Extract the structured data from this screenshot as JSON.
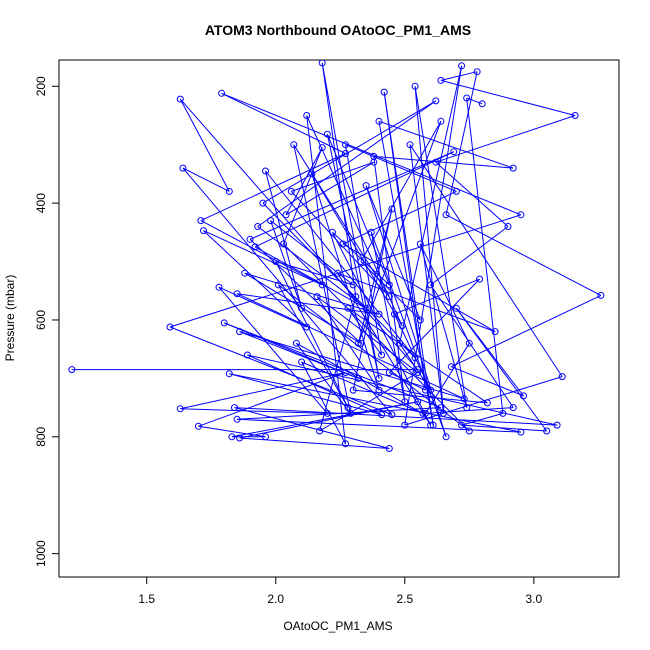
{
  "chart_data": {
    "type": "line",
    "title": "ATOM3 Northbound OAtoOC_PM1_AMS",
    "xlabel": "OAtoOC_PM1_AMS",
    "ylabel": "Pressure (mbar)",
    "xlim": [
      1.16,
      3.33
    ],
    "ylim": [
      1040,
      155
    ],
    "y_reversed": true,
    "xticks": [
      1.5,
      2.0,
      2.5,
      3.0
    ],
    "xtick_labels": [
      "1.5",
      "2.0",
      "2.5",
      "3.0"
    ],
    "yticks": [
      200,
      400,
      600,
      800,
      1000
    ],
    "ytick_labels": [
      "200",
      "400",
      "600",
      "800",
      "1000"
    ],
    "grid": false,
    "legend": "none",
    "marker": "open circle",
    "series": [
      {
        "color": "#0000ff",
        "points": [
          [
            1.21,
            685
          ],
          [
            2.55,
            685
          ],
          [
            1.63,
            222
          ],
          [
            1.82,
            380
          ],
          [
            1.64,
            340
          ],
          [
            2.45,
            762
          ],
          [
            1.59,
            612
          ],
          [
            2.95,
            420
          ],
          [
            1.79,
            212
          ],
          [
            2.27,
            315
          ],
          [
            1.71,
            430
          ],
          [
            2.18,
            540
          ],
          [
            1.72,
            447
          ],
          [
            2.12,
            612
          ],
          [
            1.78,
            544
          ],
          [
            2.2,
            760
          ],
          [
            1.63,
            752
          ],
          [
            2.27,
            690
          ],
          [
            1.7,
            782
          ],
          [
            1.96,
            800
          ],
          [
            1.83,
            800
          ],
          [
            2.55,
            740
          ],
          [
            1.86,
            802
          ],
          [
            2.44,
            820
          ],
          [
            1.84,
            750
          ],
          [
            3.09,
            780
          ],
          [
            1.89,
            660
          ],
          [
            2.41,
            762
          ],
          [
            1.82,
            692
          ],
          [
            2.95,
            792
          ],
          [
            1.85,
            770
          ],
          [
            2.64,
            750
          ],
          [
            1.8,
            605
          ],
          [
            2.32,
            700
          ],
          [
            1.86,
            620
          ],
          [
            2.73,
            735
          ],
          [
            1.85,
            555
          ],
          [
            2.4,
            590
          ],
          [
            1.88,
            520
          ],
          [
            2.33,
            640
          ],
          [
            1.9,
            462
          ],
          [
            2.69,
            312
          ],
          [
            1.92,
            475
          ],
          [
            2.35,
            580
          ],
          [
            1.93,
            440
          ],
          [
            2.62,
            225
          ],
          [
            1.95,
            400
          ],
          [
            2.54,
            665
          ],
          [
            1.96,
            345
          ],
          [
            2.1,
            580
          ],
          [
            1.98,
            430
          ],
          [
            2.3,
            540
          ],
          [
            2.0,
            500
          ],
          [
            2.28,
            750
          ],
          [
            2.01,
            540
          ],
          [
            2.75,
            790
          ],
          [
            2.03,
            470
          ],
          [
            2.18,
            305
          ],
          [
            2.04,
            420
          ],
          [
            2.38,
            330
          ],
          [
            2.06,
            380
          ],
          [
            2.44,
            560
          ],
          [
            2.07,
            300
          ],
          [
            2.29,
            760
          ],
          [
            2.08,
            640
          ],
          [
            2.57,
            760
          ],
          [
            2.1,
            672
          ],
          [
            2.27,
            812
          ],
          [
            2.12,
            250
          ],
          [
            2.49,
            610
          ],
          [
            2.14,
            350
          ],
          [
            2.4,
            720
          ],
          [
            2.16,
            560
          ],
          [
            2.55,
            690
          ],
          [
            2.17,
            790
          ],
          [
            2.31,
            560
          ],
          [
            2.18,
            160
          ],
          [
            2.4,
            700
          ],
          [
            2.2,
            282
          ],
          [
            2.44,
            540
          ],
          [
            2.22,
            450
          ],
          [
            2.6,
            780
          ],
          [
            2.24,
            520
          ],
          [
            2.85,
            620
          ],
          [
            2.26,
            470
          ],
          [
            2.7,
            380
          ],
          [
            2.27,
            300
          ],
          [
            2.41,
            660
          ],
          [
            2.28,
            580
          ],
          [
            2.82,
            742
          ],
          [
            2.3,
            720
          ],
          [
            2.45,
            410
          ],
          [
            2.32,
            640
          ],
          [
            2.64,
            260
          ],
          [
            2.33,
            500
          ],
          [
            2.56,
            600
          ],
          [
            2.35,
            370
          ],
          [
            2.66,
            800
          ],
          [
            2.37,
            450
          ],
          [
            2.5,
            740
          ],
          [
            2.38,
            320
          ],
          [
            2.92,
            340
          ],
          [
            2.4,
            260
          ],
          [
            2.61,
            780
          ],
          [
            2.42,
            210
          ],
          [
            2.58,
            720
          ],
          [
            2.44,
            690
          ],
          [
            2.79,
            530
          ],
          [
            2.46,
            590
          ],
          [
            2.6,
            720
          ],
          [
            2.48,
            640
          ],
          [
            2.72,
            165
          ],
          [
            2.5,
            780
          ],
          [
            3.11,
            697
          ],
          [
            2.52,
            300
          ],
          [
            2.65,
            760
          ],
          [
            2.54,
            200
          ],
          [
            2.74,
            750
          ],
          [
            2.56,
            470
          ],
          [
            2.75,
            640
          ],
          [
            2.58,
            760
          ],
          [
            2.92,
            750
          ],
          [
            2.6,
            540
          ],
          [
            2.9,
            440
          ],
          [
            2.62,
            330
          ],
          [
            3.16,
            250
          ],
          [
            2.64,
            190
          ],
          [
            2.78,
            175
          ],
          [
            2.66,
            420
          ],
          [
            3.26,
            558
          ],
          [
            2.68,
            680
          ],
          [
            2.96,
            730
          ],
          [
            2.7,
            580
          ],
          [
            3.05,
            790
          ],
          [
            2.72,
            780
          ],
          [
            2.88,
            760
          ],
          [
            2.74,
            220
          ],
          [
            2.8,
            230
          ]
        ]
      }
    ]
  }
}
